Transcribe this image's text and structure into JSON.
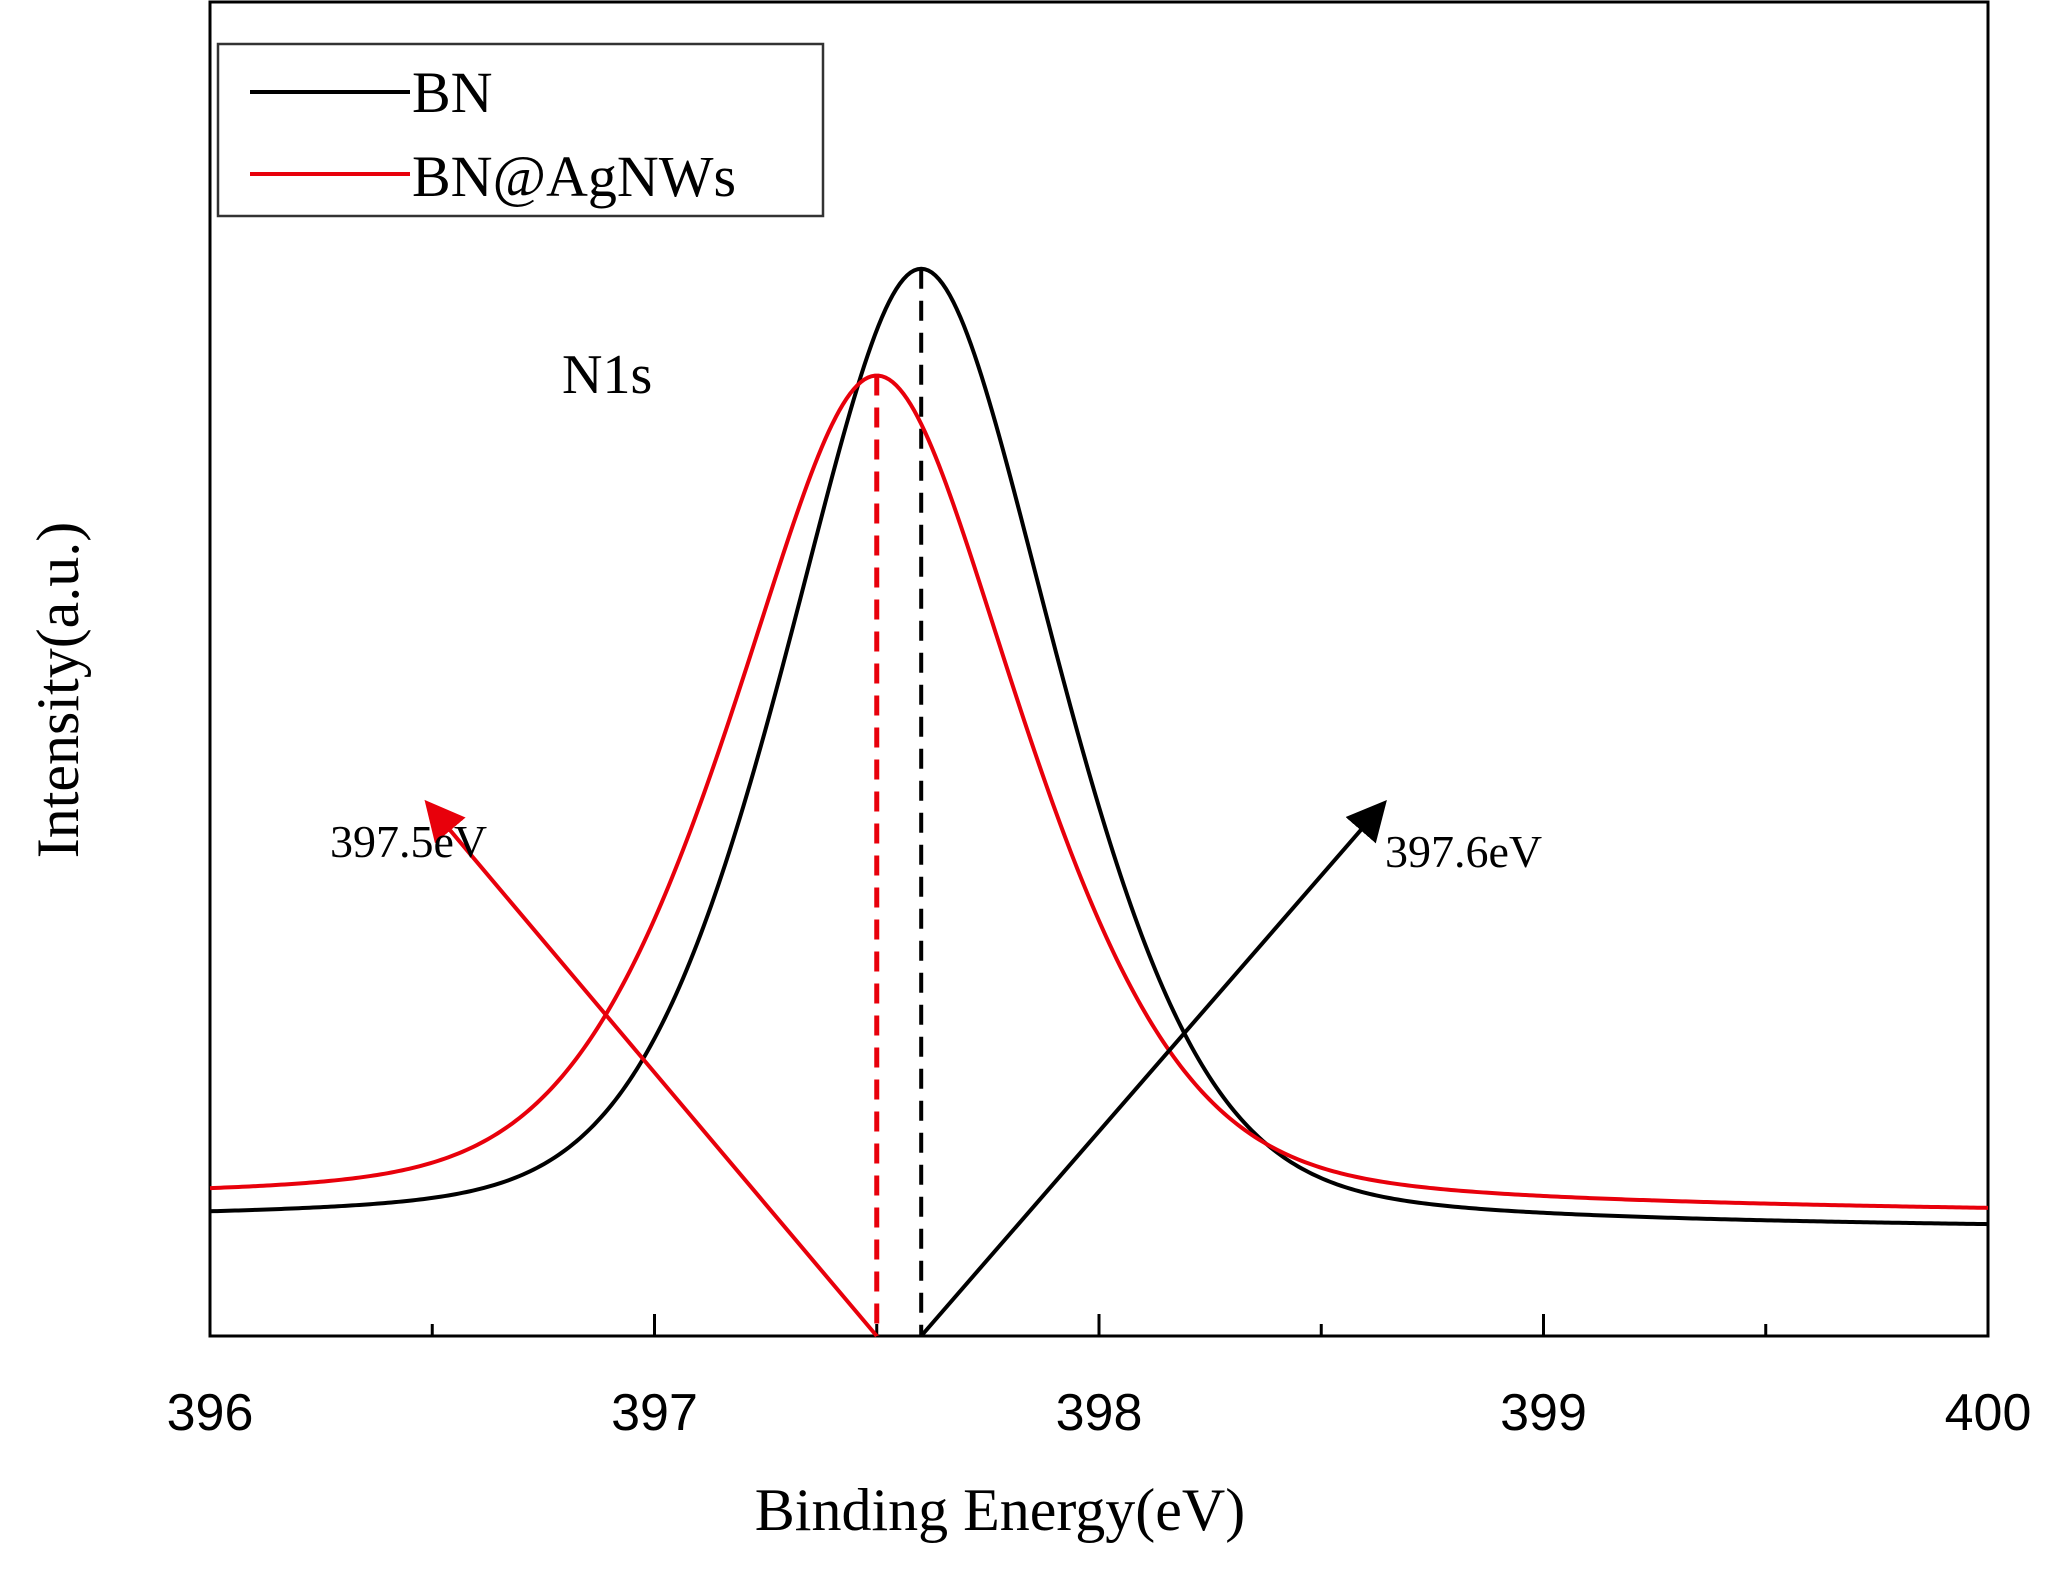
{
  "chart_data": {
    "type": "line",
    "title": "",
    "xlabel": "Binding Energy(eV)",
    "ylabel": "Intensity(a.u.)",
    "xlim": [
      396,
      400
    ],
    "ylim": [
      0,
      1.0
    ],
    "x_ticks": [
      "396",
      "397",
      "398",
      "399",
      "400"
    ],
    "y_ticks_visible": false,
    "grid": false,
    "legend_position": "top-left",
    "series": [
      {
        "name": "BN",
        "color": "#000000",
        "peak_center": 397.6,
        "peak_height": 0.8,
        "baseline_low": 0.085,
        "baseline_high": 0.08,
        "sigma": 0.33,
        "gamma": 0.3,
        "eta": 0.35
      },
      {
        "name": "BN@AgNWs",
        "color": "#e8000b",
        "peak_center": 397.5,
        "peak_height": 0.72,
        "baseline_low": 0.1,
        "baseline_high": 0.092,
        "sigma": 0.36,
        "gamma": 0.32,
        "eta": 0.4
      }
    ],
    "annotations": [
      {
        "text": "N1s",
        "x": 396.93,
        "y": 0.76,
        "color": "#000000"
      },
      {
        "text": "397.5eV",
        "x": 396.5,
        "y": 0.44,
        "color": "#000000"
      },
      {
        "text": "397.6eV",
        "x": 398.65,
        "y": 0.43,
        "color": "#000000"
      }
    ],
    "peak_markers": [
      {
        "x": 397.6,
        "color": "#000000",
        "style": "dashed"
      },
      {
        "x": 397.5,
        "color": "#e8000b",
        "style": "dashed"
      }
    ],
    "arrows": [
      {
        "from": [
          397.5,
          0.0
        ],
        "to": [
          396.5,
          0.395
        ],
        "color": "#e8000b"
      },
      {
        "from": [
          397.6,
          0.0
        ],
        "to": [
          398.63,
          0.395
        ],
        "color": "#000000"
      }
    ]
  }
}
